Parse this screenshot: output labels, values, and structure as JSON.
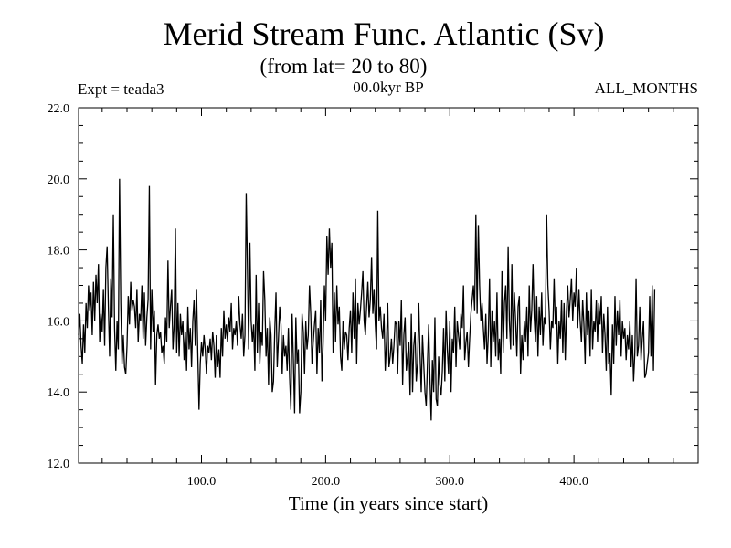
{
  "chart_data": {
    "type": "line",
    "title": "Merid Stream Func. Atlantic (Sv)",
    "subtitle": "(from lat= 20 to 80)",
    "annotations": {
      "left": "Expt = teada3",
      "center": "00.0kyr BP",
      "right": "ALL_MONTHS"
    },
    "xlabel": "Time (in years since start)",
    "ylabel": "",
    "xlim": [
      1,
      500
    ],
    "ylim": [
      12.0,
      22.0
    ],
    "x_ticks": [
      "100.0",
      "200.0",
      "300.0",
      "400.0"
    ],
    "x_tick_values": [
      100,
      200,
      300,
      400
    ],
    "y_ticks": [
      "12.0",
      "14.0",
      "16.0",
      "18.0",
      "20.0",
      "22.0"
    ],
    "y_tick_values": [
      12,
      14,
      16,
      18,
      20,
      22
    ],
    "grid": false,
    "series": [
      {
        "x_start": 1,
        "x_step": 1,
        "values": [
          15.6,
          16.2,
          15.3,
          14.8,
          15.9,
          15.1,
          16.5,
          15.8,
          17.0,
          16.3,
          16.8,
          15.6,
          17.1,
          16.0,
          17.3,
          16.5,
          17.6,
          15.4,
          16.2,
          15.7,
          16.9,
          15.3,
          17.5,
          18.1,
          16.4,
          15.0,
          17.2,
          16.1,
          19.0,
          15.8,
          14.6,
          16.0,
          15.2,
          20.0,
          16.5,
          14.8,
          15.6,
          14.7,
          14.5,
          15.3,
          16.7,
          15.9,
          17.1,
          16.3,
          16.6,
          16.4,
          15.8,
          16.9,
          15.4,
          16.2,
          16.0,
          17.0,
          15.5,
          16.8,
          15.3,
          16.1,
          16.6,
          19.8,
          15.2,
          16.9,
          15.7,
          16.3,
          14.2,
          15.6,
          15.9,
          15.5,
          15.7,
          15.1,
          15.3,
          14.8,
          16.1,
          15.4,
          17.7,
          15.8,
          16.4,
          16.9,
          15.2,
          15.9,
          18.6,
          15.1,
          16.5,
          15.0,
          16.2,
          15.6,
          16.0,
          14.9,
          15.7,
          14.6,
          16.4,
          15.2,
          15.8,
          14.7,
          16.0,
          16.6,
          15.3,
          16.9,
          15.1,
          13.5,
          14.8,
          15.4,
          15.0,
          15.6,
          15.2,
          14.5,
          15.3,
          15.1,
          15.5,
          14.9,
          15.7,
          15.3,
          14.4,
          15.6,
          14.7,
          15.2,
          14.4,
          15.8,
          15.0,
          16.3,
          15.5,
          15.9,
          15.4,
          16.1,
          15.7,
          16.5,
          15.2,
          15.8,
          15.6,
          16.0,
          15.3,
          16.7,
          15.9,
          15.5,
          16.2,
          15.0,
          15.6,
          19.6,
          17.5,
          15.2,
          18.2,
          16.0,
          15.4,
          15.9,
          14.6,
          17.3,
          15.1,
          16.5,
          14.8,
          15.7,
          15.3,
          17.4,
          16.6,
          15.0,
          15.8,
          14.2,
          16.1,
          15.6,
          14.0,
          14.3,
          15.7,
          16.8,
          14.7,
          15.5,
          16.4,
          15.9,
          14.5,
          15.6,
          15.0,
          15.3,
          14.6,
          15.8,
          14.4,
          13.5,
          16.2,
          14.9,
          13.4,
          16.1,
          14.8,
          15.2,
          13.4,
          14.0,
          16.2,
          15.7,
          14.5,
          16.0,
          15.2,
          15.6,
          17.0,
          16.2,
          14.8,
          15.4,
          15.9,
          16.3,
          14.5,
          15.8,
          15.1,
          16.6,
          14.3,
          15.4,
          17.0,
          16.0,
          18.4,
          17.3,
          18.6,
          17.5,
          18.2,
          15.1,
          16.8,
          15.4,
          17.0,
          15.9,
          16.4,
          15.0,
          14.6,
          16.0,
          15.2,
          15.7,
          15.6,
          14.9,
          15.8,
          16.3,
          15.1,
          16.8,
          15.5,
          17.2,
          14.8,
          16.5,
          15.9,
          16.3,
          16.8,
          17.4,
          16.0,
          15.6,
          16.4,
          17.1,
          16.1,
          16.6,
          17.8,
          16.2,
          16.9,
          15.9,
          15.2,
          19.1,
          16.0,
          16.4,
          15.8,
          15.5,
          16.2,
          14.6,
          15.4,
          16.5,
          14.7,
          15.0,
          15.5,
          14.8,
          15.3,
          16.0,
          15.9,
          14.5,
          16.0,
          15.3,
          16.6,
          14.2,
          15.6,
          16.1,
          14.6,
          15.0,
          15.4,
          13.9,
          16.2,
          14.0,
          15.3,
          15.7,
          14.3,
          14.8,
          16.5,
          15.1,
          14.0,
          15.6,
          14.8,
          14.0,
          13.6,
          14.8,
          15.9,
          14.4,
          13.2,
          14.9,
          14.0,
          16.1,
          13.8,
          13.6,
          15.0,
          14.2,
          13.9,
          14.6,
          15.8,
          14.3,
          16.3,
          15.2,
          14.5,
          16.0,
          14.0,
          15.5,
          15.1,
          16.4,
          14.7,
          16.0,
          15.6,
          15.2,
          16.2,
          15.8,
          17.0,
          14.9,
          15.4,
          15.7,
          14.7,
          15.5,
          16.2,
          16.6,
          17.0,
          16.3,
          19.0,
          16.2,
          18.7,
          17.0,
          16.0,
          16.5,
          15.8,
          15.2,
          16.2,
          14.8,
          15.6,
          17.2,
          14.7,
          16.3,
          15.4,
          16.0,
          15.0,
          16.8,
          14.9,
          15.5,
          14.5,
          17.4,
          15.1,
          16.5,
          17.0,
          15.5,
          18.1,
          16.0,
          15.2,
          17.6,
          15.3,
          16.8,
          16.0,
          15.0,
          16.4,
          16.7,
          14.5,
          15.6,
          14.9,
          16.0,
          15.4,
          16.4,
          15.0,
          17.0,
          15.7,
          16.3,
          17.6,
          16.1,
          15.4,
          16.7,
          15.0,
          16.4,
          15.6,
          16.8,
          15.3,
          16.1,
          15.9,
          19.0,
          17.0,
          16.3,
          15.2,
          16.0,
          15.8,
          17.2,
          15.9,
          16.4,
          14.8,
          16.0,
          15.5,
          16.6,
          15.1,
          16.5,
          14.9,
          16.3,
          17.0,
          16.1,
          16.6,
          17.2,
          16.0,
          16.8,
          16.4,
          17.5,
          15.8,
          16.9,
          16.0,
          15.4,
          16.6,
          15.9,
          14.8,
          16.8,
          15.6,
          16.3,
          15.0,
          16.9,
          15.2,
          16.0,
          15.7,
          16.6,
          15.4,
          16.5,
          15.9,
          16.7,
          15.1,
          16.2,
          15.6,
          14.6,
          16.4,
          14.8,
          15.1,
          13.9,
          15.9,
          14.8,
          16.7,
          15.3,
          16.3,
          15.6,
          16.6,
          15.0,
          16.0,
          15.5,
          15.8,
          14.9,
          15.6,
          15.2,
          16.0,
          14.7,
          15.6,
          14.3,
          15.1,
          17.2,
          15.0,
          15.3,
          16.4,
          14.9,
          15.5,
          16.0,
          14.4,
          14.5,
          14.8,
          15.1,
          16.7,
          15.0,
          17.0,
          14.6,
          16.9
        ]
      }
    ]
  }
}
